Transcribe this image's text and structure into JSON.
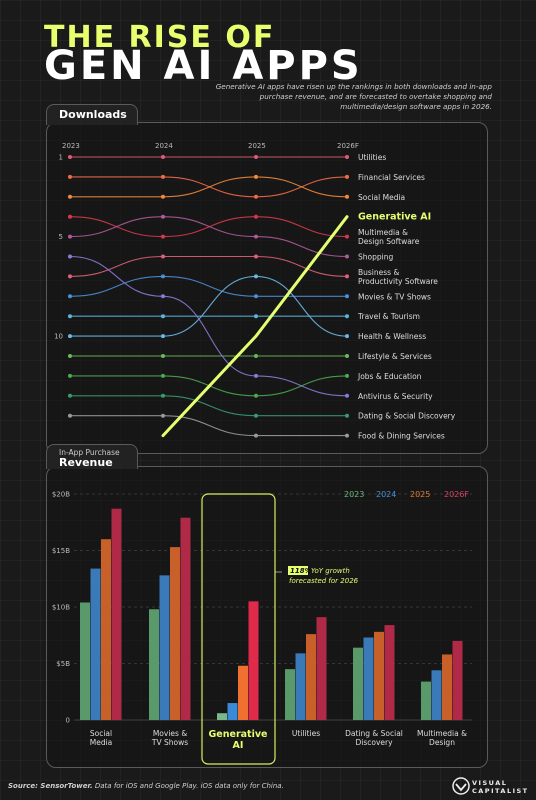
{
  "header": {
    "title_line1": "THE RISE OF",
    "title_line2": "GEN AI APPS",
    "intro": "Generative AI apps have risen up the rankings in both downloads and in-app purchase revenue, and are forecasted to overtake shopping and multimedia/design software apps in 2026."
  },
  "downloads_panel": {
    "label": "Downloads"
  },
  "revenue_panel": {
    "label_small": "In-App Purchase",
    "label": "Revenue"
  },
  "footer": {
    "source_label": "Source: SensorTower.",
    "source_note": "Data for iOS and Google Play. iOS data only for China.",
    "brand": [
      "VISUAL",
      "CAPITALIST"
    ]
  },
  "chart_data": [
    {
      "type": "line",
      "title": "Downloads",
      "x": [
        "2023",
        "2024",
        "2025",
        "2026F"
      ],
      "y_tick_labels": [
        "1",
        "5",
        "10"
      ],
      "y_ticks": [
        1,
        5,
        10
      ],
      "y_inverted": true,
      "ylim": [
        1,
        15
      ],
      "series": [
        {
          "name": "Utilities",
          "color": "#e05a78",
          "values": [
            1,
            1,
            1,
            1
          ]
        },
        {
          "name": "Financial Services",
          "color": "#f26a4a",
          "values": [
            2,
            2,
            3,
            2
          ]
        },
        {
          "name": "Social Media",
          "color": "#f08a3c",
          "values": [
            3,
            3,
            2,
            3
          ]
        },
        {
          "name": "Generative AI",
          "color": "#e4ff70",
          "values": [
            null,
            15,
            10,
            4
          ],
          "highlight": true
        },
        {
          "name": "Multimedia & Design Software",
          "color": "#d8384a",
          "values": [
            4,
            5,
            4,
            5
          ]
        },
        {
          "name": "Shopping",
          "color": "#b05a9a",
          "values": [
            5,
            4,
            5,
            6
          ]
        },
        {
          "name": "Business & Productivity Software",
          "color": "#e0607a",
          "values": [
            7,
            6,
            6,
            7
          ]
        },
        {
          "name": "Movies & TV Shows",
          "color": "#4a90d9",
          "values": [
            8,
            7,
            8,
            8
          ]
        },
        {
          "name": "Travel & Tourism",
          "color": "#5ab4dc",
          "values": [
            9,
            9,
            9,
            9
          ]
        },
        {
          "name": "Health & Wellness",
          "color": "#6ab8e8",
          "values": [
            10,
            10,
            7,
            10
          ]
        },
        {
          "name": "Lifestyle & Services",
          "color": "#6ab85a",
          "values": [
            11,
            11,
            11,
            11
          ]
        },
        {
          "name": "Jobs & Education",
          "color": "#4aaa50",
          "values": [
            12,
            12,
            13,
            12
          ]
        },
        {
          "name": "Antivirus & Security",
          "color": "#8a7ad8",
          "values": [
            6,
            8,
            12,
            13
          ]
        },
        {
          "name": "Dating & Social Discovery",
          "color": "#3a9a70",
          "values": [
            13,
            13,
            14,
            14
          ]
        },
        {
          "name": "Food & Dining Services",
          "color": "#9a9a9a",
          "values": [
            14,
            14,
            15,
            15
          ]
        }
      ],
      "grid": false
    },
    {
      "type": "bar",
      "title": "Revenue",
      "categories": [
        "Social Media",
        "Movies & TV Shows",
        "Generative AI",
        "Utilities",
        "Dating & Social Discovery",
        "Multimedia & Design"
      ],
      "series": [
        {
          "name": "2023",
          "color": "#5a9a6a",
          "values": [
            10.4,
            9.8,
            0.6,
            4.5,
            6.4,
            3.4
          ]
        },
        {
          "name": "2024",
          "color": "#3a7ab8",
          "values": [
            13.4,
            12.8,
            1.5,
            5.9,
            7.3,
            4.4
          ]
        },
        {
          "name": "2025",
          "color": "#c8602a",
          "values": [
            16.0,
            15.3,
            4.8,
            7.6,
            7.8,
            5.8
          ]
        },
        {
          "name": "2026F",
          "color": "#b02a48",
          "values": [
            18.7,
            17.9,
            10.5,
            9.1,
            8.4,
            7.0
          ]
        }
      ],
      "y_tick_labels": [
        "$20B",
        "$15B",
        "$10B",
        "$5B",
        "0"
      ],
      "y_ticks": [
        20,
        15,
        10,
        5,
        0
      ],
      "ylim": [
        0,
        20
      ],
      "grid": true,
      "legend": "top-right",
      "annotation": {
        "highlight": "118%",
        "text": "YoY growth forecasted for 2026"
      }
    }
  ]
}
